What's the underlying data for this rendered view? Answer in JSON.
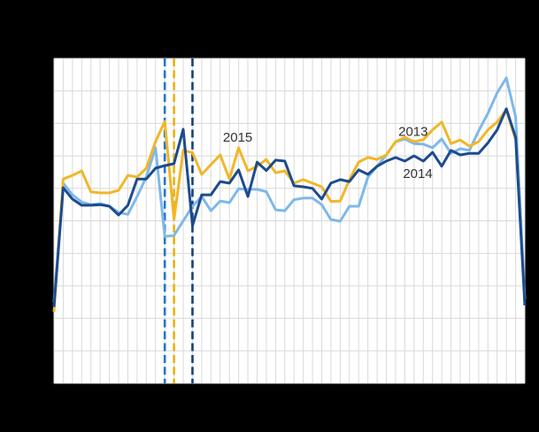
{
  "page": {
    "background_color": "#000000"
  },
  "chart_data": {
    "type": "line",
    "title": "",
    "xlabel": "",
    "ylabel": "",
    "x_axis": {
      "unit": "week",
      "min": 1,
      "max": 52,
      "tick_labels_visible": false,
      "gridlines": true
    },
    "y_axis": {
      "min": 0,
      "max": 10,
      "gridline_step": 1,
      "tick_labels_visible": false,
      "gridlines": true,
      "note": "axis labels not visible in image; values are in gridline units"
    },
    "plot_background": "#ffffff",
    "gridline_color": "#d9d9d9",
    "legend_position": "inline-labels",
    "annotation_color": "#333333",
    "series": [
      {
        "name": "2013",
        "color": "#7db8ea",
        "values": [
          2.5,
          6.16,
          5.8,
          5.58,
          5.5,
          5.53,
          5.45,
          5.26,
          5.2,
          5.75,
          6.35,
          7.25,
          4.52,
          4.55,
          5.0,
          5.45,
          5.75,
          5.31,
          5.61,
          5.56,
          5.99,
          5.97,
          5.97,
          5.9,
          5.34,
          5.31,
          5.65,
          5.7,
          5.7,
          5.5,
          5.04,
          4.99,
          5.45,
          5.45,
          6.35,
          6.68,
          7.03,
          7.44,
          7.52,
          7.38,
          7.36,
          7.25,
          7.52,
          7.08,
          7.22,
          7.17,
          7.77,
          8.31,
          8.94,
          9.4,
          8.2,
          2.59
        ]
      },
      {
        "name": "2015",
        "color": "#f0b728",
        "values": [
          2.2,
          6.29,
          6.4,
          6.54,
          5.89,
          5.86,
          5.86,
          5.94,
          6.4,
          6.35,
          6.62,
          7.44,
          8.06,
          5.04,
          7.17,
          7.1,
          6.43,
          6.73,
          7.03,
          6.29,
          7.25,
          6.54,
          6.68,
          6.89,
          6.48,
          6.54,
          6.16,
          6.27,
          6.16,
          6.05,
          5.6,
          5.61,
          6.27,
          6.81,
          6.95,
          6.89,
          7.03,
          7.44,
          7.57,
          7.44,
          7.5,
          7.8,
          8.04,
          7.38,
          7.49,
          7.3,
          7.44,
          7.8,
          8.04,
          8.42,
          7.5,
          null
        ]
      },
      {
        "name": "2014",
        "color": "#1d4b8e",
        "values": [
          2.35,
          6.02,
          5.67,
          5.48,
          5.48,
          5.5,
          5.45,
          5.18,
          5.48,
          6.29,
          6.29,
          6.62,
          6.7,
          6.76,
          7.82,
          4.85,
          5.8,
          5.8,
          6.21,
          6.16,
          6.57,
          5.75,
          6.81,
          6.55,
          6.87,
          6.84,
          6.08,
          6.05,
          6.0,
          5.67,
          6.16,
          6.27,
          6.21,
          6.57,
          6.43,
          6.68,
          6.84,
          6.95,
          6.84,
          7.0,
          6.84,
          7.11,
          6.68,
          7.17,
          7.03,
          7.08,
          7.08,
          7.4,
          7.8,
          8.45,
          7.57,
          2.4
        ]
      }
    ],
    "event_lines": [
      {
        "name": "easter-week-2013",
        "week": 13,
        "color": "#1f76d2",
        "style": "dashed"
      },
      {
        "name": "easter-week-2015",
        "week": 14,
        "color": "#e9b212",
        "style": "dashed"
      },
      {
        "name": "easter-week-2014",
        "week": 16,
        "color": "#15417f",
        "style": "dashed"
      }
    ],
    "annotations": [
      {
        "text": "2015",
        "week": 20.9,
        "value": 7.59
      },
      {
        "text": "2013",
        "week": 39.9,
        "value": 7.76
      },
      {
        "text": "2014",
        "week": 40.4,
        "value": 6.47
      }
    ]
  }
}
